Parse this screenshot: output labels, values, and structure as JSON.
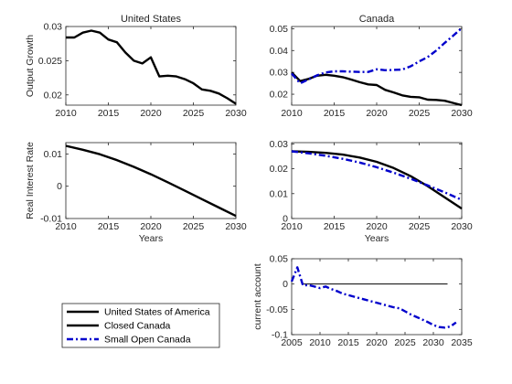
{
  "chart_data": [
    {
      "type": "line",
      "title": "United States",
      "xlabel": "",
      "ylabel": "Output Growth",
      "xlim": [
        2010,
        2030
      ],
      "ylim": [
        0.0185,
        0.03
      ],
      "xticks": [
        2010,
        2015,
        2020,
        2025,
        2030
      ],
      "yticks": [
        0.02,
        0.025,
        0.03
      ],
      "yticklabels": [
        "0.02",
        "0.025",
        "0.03"
      ],
      "series": [
        {
          "key": "usa",
          "color": "#000000",
          "dash": "solid",
          "x": [
            2010,
            2011,
            2012,
            2013,
            2014,
            2015,
            2016,
            2017,
            2018,
            2019,
            2020,
            2021,
            2022,
            2023,
            2024,
            2025,
            2026,
            2027,
            2028,
            2029,
            2030
          ],
          "y": [
            0.0284,
            0.0284,
            0.0291,
            0.0294,
            0.0291,
            0.0281,
            0.0277,
            0.0262,
            0.025,
            0.0246,
            0.0255,
            0.0227,
            0.0228,
            0.0227,
            0.0223,
            0.0217,
            0.0208,
            0.0206,
            0.0202,
            0.0195,
            0.0187
          ]
        }
      ]
    },
    {
      "type": "line",
      "title": "Canada",
      "xlabel": "",
      "ylabel": "",
      "xlim": [
        2010,
        2030
      ],
      "ylim": [
        0.015,
        0.051
      ],
      "xticks": [
        2010,
        2015,
        2020,
        2025,
        2030
      ],
      "yticks": [
        0.02,
        0.03,
        0.04,
        0.05
      ],
      "yticklabels": [
        "0.02",
        "0.03",
        "0.04",
        "0.05"
      ],
      "series": [
        {
          "key": "closed",
          "color": "#000000",
          "dash": "solid",
          "x": [
            2010,
            2011,
            2012,
            2013,
            2014,
            2015,
            2016,
            2017,
            2018,
            2019,
            2020,
            2021,
            2022,
            2023,
            2024,
            2025,
            2026,
            2027,
            2028,
            2029,
            2030
          ],
          "y": [
            0.03,
            0.026,
            0.027,
            0.0285,
            0.0289,
            0.0285,
            0.0278,
            0.0267,
            0.0255,
            0.0245,
            0.0242,
            0.022,
            0.0208,
            0.0195,
            0.0188,
            0.0186,
            0.0175,
            0.0174,
            0.017,
            0.016,
            0.015
          ]
        },
        {
          "key": "open",
          "color": "#0000cc",
          "dash": "dashdot",
          "x": [
            2010,
            2011,
            2012,
            2013,
            2014,
            2015,
            2016,
            2017,
            2018,
            2019,
            2020,
            2021,
            2022,
            2023,
            2024,
            2025,
            2026,
            2027,
            2028,
            2029,
            2030
          ],
          "y": [
            0.0295,
            0.025,
            0.0268,
            0.0287,
            0.03,
            0.0305,
            0.0305,
            0.0303,
            0.0302,
            0.0302,
            0.0314,
            0.031,
            0.0311,
            0.0313,
            0.0328,
            0.035,
            0.037,
            0.04,
            0.0435,
            0.0468,
            0.0503
          ]
        }
      ]
    },
    {
      "type": "line",
      "title": "",
      "xlabel": "Years",
      "ylabel": "Real Interest Rate",
      "xlim": [
        2010,
        2030
      ],
      "ylim": [
        -0.01,
        0.0135
      ],
      "xticks": [
        2010,
        2015,
        2020,
        2025,
        2030
      ],
      "yticks": [
        -0.01,
        0,
        0.01
      ],
      "yticklabels": [
        "-0.01",
        "0",
        "0.01"
      ],
      "series": [
        {
          "key": "usa",
          "color": "#000000",
          "dash": "solid",
          "x": [
            2010,
            2012,
            2014,
            2016,
            2018,
            2020,
            2022,
            2024,
            2026,
            2028,
            2030
          ],
          "y": [
            0.0125,
            0.0113,
            0.0099,
            0.0081,
            0.006,
            0.0037,
            0.0012,
            -0.0014,
            -0.004,
            -0.0066,
            -0.0092
          ]
        }
      ]
    },
    {
      "type": "line",
      "title": "",
      "xlabel": "Years",
      "ylabel": "",
      "xlim": [
        2010,
        2030
      ],
      "ylim": [
        0,
        0.0305
      ],
      "xticks": [
        2010,
        2015,
        2020,
        2025,
        2030
      ],
      "yticks": [
        0,
        0.01,
        0.02,
        0.03
      ],
      "yticklabels": [
        "0",
        "0.01",
        "0.02",
        "0.03"
      ],
      "series": [
        {
          "key": "closed",
          "color": "#000000",
          "dash": "solid",
          "x": [
            2010,
            2012,
            2014,
            2016,
            2018,
            2020,
            2022,
            2024,
            2026,
            2028,
            2030
          ],
          "y": [
            0.027,
            0.0268,
            0.0264,
            0.0257,
            0.0245,
            0.0228,
            0.0203,
            0.017,
            0.013,
            0.0085,
            0.004
          ]
        },
        {
          "key": "open",
          "color": "#0000cc",
          "dash": "dashdot",
          "x": [
            2010,
            2012,
            2014,
            2016,
            2018,
            2020,
            2022,
            2024,
            2026,
            2028,
            2030
          ],
          "y": [
            0.027,
            0.0262,
            0.0252,
            0.024,
            0.0225,
            0.0206,
            0.0184,
            0.016,
            0.0133,
            0.0105,
            0.0075
          ]
        }
      ]
    },
    {
      "type": "line",
      "title": "",
      "xlabel": "",
      "ylabel": "current account",
      "xlim": [
        2005,
        2035
      ],
      "ylim": [
        -0.1,
        0.05
      ],
      "xticks": [
        2005,
        2010,
        2015,
        2020,
        2025,
        2030,
        2035
      ],
      "yticks": [
        -0.1,
        -0.05,
        0,
        0.05
      ],
      "yticklabels": [
        "-0.1",
        "-0.05",
        "0",
        "0.05"
      ],
      "hline": 0,
      "series": [
        {
          "key": "open",
          "color": "#0000cc",
          "dash": "dashdot",
          "x": [
            2005,
            2006,
            2007,
            2008,
            2009,
            2010,
            2011,
            2012,
            2013,
            2014,
            2015,
            2016,
            2017,
            2018,
            2019,
            2020,
            2021,
            2022,
            2023,
            2024,
            2025,
            2026,
            2027,
            2028,
            2029,
            2030,
            2031,
            2032,
            2033,
            2034
          ],
          "y": [
            0.005,
            0.033,
            -0.003,
            -0.002,
            -0.005,
            -0.008,
            -0.005,
            -0.01,
            -0.014,
            -0.019,
            -0.022,
            -0.025,
            -0.028,
            -0.031,
            -0.034,
            -0.037,
            -0.04,
            -0.043,
            -0.046,
            -0.048,
            -0.054,
            -0.06,
            -0.065,
            -0.07,
            -0.075,
            -0.081,
            -0.085,
            -0.086,
            -0.084,
            -0.076
          ]
        }
      ]
    }
  ],
  "legend": {
    "position": "bottom-left",
    "entries": [
      {
        "key": "usa",
        "label": "United States of America",
        "color": "#000000",
        "dash": "solid"
      },
      {
        "key": "closed",
        "label": "Closed Canada",
        "color": "#000000",
        "dash": "solid"
      },
      {
        "key": "open",
        "label": "Small Open Canada",
        "color": "#0000cc",
        "dash": "dashdot"
      }
    ]
  }
}
